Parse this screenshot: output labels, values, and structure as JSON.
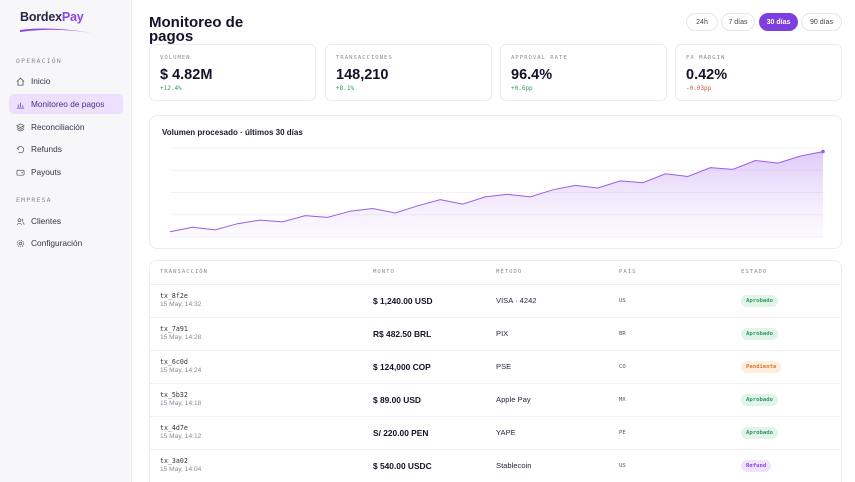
{
  "brand": {
    "name_a": "Bordex",
    "name_b": "Pay",
    "accent": "#8b45e6"
  },
  "sidebar": {
    "section_operacion": "OPERACIÓN",
    "section_empresa": "EMPRESA",
    "items": [
      {
        "label": "Inicio",
        "icon": "home-icon"
      },
      {
        "label": "Monitoreo de pagos",
        "icon": "chart-icon",
        "active": true
      },
      {
        "label": "Reconciliación",
        "icon": "layers-icon"
      },
      {
        "label": "Refunds",
        "icon": "undo-icon"
      },
      {
        "label": "Payouts",
        "icon": "wallet-icon"
      },
      {
        "label": "Clientes",
        "icon": "users-icon"
      },
      {
        "label": "Configuración",
        "icon": "gear-icon"
      }
    ]
  },
  "header": {
    "title": "Monitoreo de pagos",
    "ranges": [
      "24h",
      "7 días",
      "30 días",
      "90 días"
    ],
    "active_range": "30 días"
  },
  "kpis": [
    {
      "label": "VOLUMEN",
      "value": "$ 4.82M",
      "delta": "+12.4%",
      "trend": "up"
    },
    {
      "label": "TRANSACCIONES",
      "value": "148,210",
      "delta": "+8.1%",
      "trend": "up"
    },
    {
      "label": "APPROVAL RATE",
      "value": "96.4%",
      "delta": "+0.6pp",
      "trend": "up"
    },
    {
      "label": "FX MARGIN",
      "value": "0.42%",
      "delta": "-0.03pp",
      "trend": "down"
    }
  ],
  "chart": {
    "title": "Volumen procesado · últimos 30 días",
    "line_color": "#9b5de5"
  },
  "chart_data": {
    "type": "area",
    "x": [
      1,
      2,
      3,
      4,
      5,
      6,
      7,
      8,
      9,
      10,
      11,
      12,
      13,
      14,
      15,
      16,
      17,
      18,
      19,
      20,
      21,
      22,
      23,
      24,
      25,
      26,
      27,
      28,
      29,
      30
    ],
    "values": [
      6,
      11,
      8,
      15,
      19,
      17,
      24,
      22,
      29,
      32,
      27,
      35,
      42,
      37,
      45,
      48,
      45,
      53,
      58,
      55,
      63,
      61,
      71,
      68,
      78,
      76,
      86,
      83,
      91,
      96
    ],
    "ylim": [
      0,
      100
    ],
    "grid": true
  },
  "table": {
    "headers": [
      "TRANSACCIÓN",
      "MONTO",
      "MÉTODO",
      "PAÍS",
      "ESTADO"
    ],
    "rows": [
      {
        "id": "tx_8f2e",
        "time": "15 May, 14:32",
        "amount": "$ 1,240.00 USD",
        "method": "VISA · 4242",
        "country": "US",
        "status": "Aprobado",
        "kind": "ok"
      },
      {
        "id": "tx_7a91",
        "time": "15 May, 14:28",
        "amount": "R$ 482.50 BRL",
        "method": "PIX",
        "country": "BR",
        "status": "Aprobado",
        "kind": "ok"
      },
      {
        "id": "tx_6c0d",
        "time": "15 May, 14:24",
        "amount": "$ 124,000 COP",
        "method": "PSE",
        "country": "CO",
        "status": "Pendiente",
        "kind": "pend"
      },
      {
        "id": "tx_5b32",
        "time": "15 May, 14:18",
        "amount": "$ 89.00 USD",
        "method": "Apple Pay",
        "country": "MX",
        "status": "Aprobado",
        "kind": "ok"
      },
      {
        "id": "tx_4d7e",
        "time": "15 May, 14:12",
        "amount": "S/ 220.00 PEN",
        "method": "YAPE",
        "country": "PE",
        "status": "Aprobado",
        "kind": "ok"
      },
      {
        "id": "tx_3a02",
        "time": "15 May, 14:04",
        "amount": "$ 540.00 USDC",
        "method": "Stablecoin",
        "country": "US",
        "status": "Refund",
        "kind": "ref"
      }
    ]
  }
}
